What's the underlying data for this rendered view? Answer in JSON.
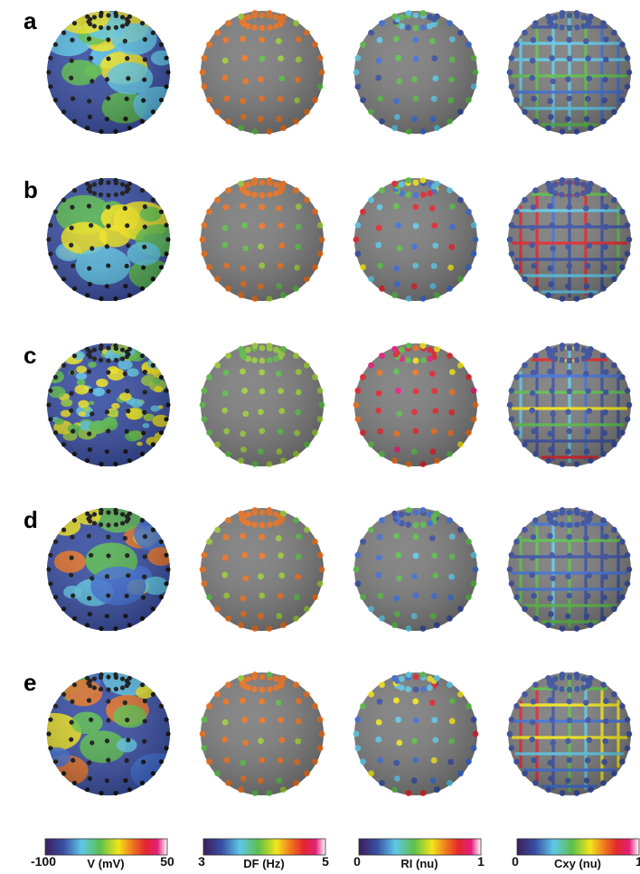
{
  "rows": [
    {
      "label": "a",
      "df": "orange",
      "ri": "blue",
      "cxy": "blue",
      "v_map": "yellow-green"
    },
    {
      "label": "b",
      "df": "orange",
      "ri": "mixed",
      "cxy": "mixed",
      "v_map": "mixed"
    },
    {
      "label": "c",
      "df": "green",
      "ri": "red",
      "cxy": "mixed",
      "v_map": "yellow-noise"
    },
    {
      "label": "d",
      "df": "orange",
      "ri": "blue",
      "cxy": "blue",
      "v_map": "mixed"
    },
    {
      "label": "e",
      "df": "orange",
      "ri": "mixed",
      "cxy": "mixed",
      "v_map": "mixed"
    }
  ],
  "colorbars": [
    {
      "label": "V (mV)",
      "min": "-100",
      "max": "50"
    },
    {
      "label": "DF (Hz)",
      "min": "3",
      "max": "5"
    },
    {
      "label": "RI (nu)",
      "min": "0",
      "max": "1"
    },
    {
      "label": "Cxy (nu)",
      "min": "0",
      "max": "1"
    }
  ],
  "colors": {
    "sphere": "#7d7d7d",
    "dark_blue": "#3a4fa3",
    "mid_blue": "#3f6fd6",
    "cyan": "#5ec8e8",
    "green": "#5cbf4a",
    "light_green": "#9ccf3a",
    "yellow": "#f2e51a",
    "orange": "#f0731f",
    "red": "#e3262f",
    "magenta": "#e3207a",
    "black": "#111111"
  }
}
